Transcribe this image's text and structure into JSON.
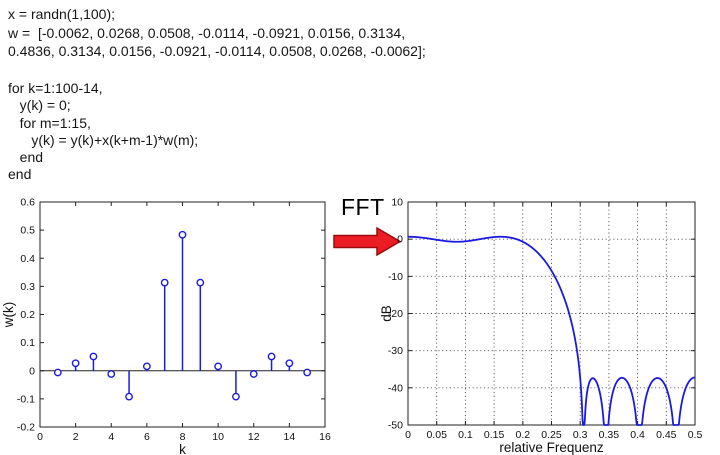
{
  "code": {
    "setup": [
      "x = randn(1,100);",
      "w =  [-0.0062, 0.0268, 0.0508, -0.0114, -0.0921, 0.0156, 0.3134,",
      "0.4836, 0.3134, 0.0156, -0.0921, -0.0114, 0.0508, 0.0268, -0.0062];"
    ],
    "loop": [
      "for k=1:100-14,",
      "   y(k) = 0;",
      "   for m=1:15,",
      "      y(k) = y(k)+x(k+m-1)*w(m);",
      "   end",
      "end"
    ]
  },
  "fft_label": "FFT",
  "arrow": {
    "fill": "#ec1c24",
    "stroke": "#9b0b0b"
  },
  "colors": {
    "plot_line": "#1a1ae0",
    "axis": "#222222",
    "grid": "#555555"
  },
  "chart_data": [
    {
      "type": "stem",
      "title": "",
      "xlabel": "k",
      "ylabel": "w(k)",
      "xlim": [
        0,
        16
      ],
      "ylim": [
        -0.2,
        0.6
      ],
      "xticks": [
        0,
        2,
        4,
        6,
        8,
        10,
        12,
        14,
        16
      ],
      "yticks": [
        -0.2,
        -0.1,
        0,
        0.1,
        0.2,
        0.3,
        0.4,
        0.5,
        0.6
      ],
      "grid": false,
      "zero_line": true,
      "marker": "open-circle",
      "color": "#1a1ae0",
      "x": [
        1,
        2,
        3,
        4,
        5,
        6,
        7,
        8,
        9,
        10,
        11,
        12,
        13,
        14,
        15
      ],
      "values": [
        -0.0062,
        0.0268,
        0.0508,
        -0.0114,
        -0.0921,
        0.0156,
        0.3134,
        0.4836,
        0.3134,
        0.0156,
        -0.0921,
        -0.0114,
        0.0508,
        0.0268,
        -0.0062
      ]
    },
    {
      "type": "line",
      "title": "",
      "xlabel": "relative Frequenz",
      "ylabel": "dB",
      "xlim": [
        0,
        0.5
      ],
      "ylim": [
        -50,
        10
      ],
      "xticks": [
        0,
        0.05,
        0.1,
        0.15,
        0.2,
        0.25,
        0.3,
        0.35,
        0.4,
        0.45,
        0.5
      ],
      "yticks": [
        10,
        0,
        -10,
        -20,
        -30,
        -40,
        -50
      ],
      "grid": true,
      "color": "#1a1ae0",
      "transform": "20*log10(|DTFT(w)|) of the 15 filter coefficients, clipped at -50 dB",
      "coefficients": [
        -0.0062,
        0.0268,
        0.0508,
        -0.0114,
        -0.0921,
        0.0156,
        0.3134,
        0.4836,
        0.3134,
        0.0156,
        -0.0921,
        -0.0114,
        0.0508,
        0.0268,
        -0.0062
      ],
      "key_points_estimated": [
        [
          0,
          0.65
        ],
        [
          0.03,
          0.3
        ],
        [
          0.06,
          -0.3
        ],
        [
          0.09,
          -0.8
        ],
        [
          0.12,
          -0.5
        ],
        [
          0.15,
          0.3
        ],
        [
          0.17,
          0.6
        ],
        [
          0.19,
          0.3
        ],
        [
          0.2,
          -0.6
        ],
        [
          0.22,
          -3
        ],
        [
          0.25,
          -9
        ],
        [
          0.27,
          -16
        ],
        [
          0.28,
          -21
        ],
        [
          0.29,
          -28
        ],
        [
          0.3,
          -42
        ],
        [
          0.305,
          -50
        ],
        [
          0.325,
          -37
        ],
        [
          0.347,
          -50
        ],
        [
          0.375,
          -37
        ],
        [
          0.404,
          -50
        ],
        [
          0.435,
          -37
        ],
        [
          0.468,
          -50
        ],
        [
          0.5,
          -37.2
        ]
      ]
    }
  ]
}
